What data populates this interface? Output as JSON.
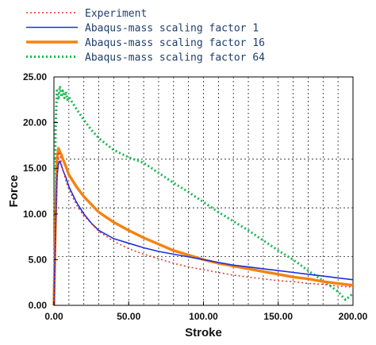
{
  "chart_data": {
    "type": "line",
    "title": "",
    "xlabel": "Stroke",
    "ylabel": "Force",
    "xlim": [
      0,
      200
    ],
    "ylim": [
      0,
      25
    ],
    "xticks": [
      0,
      50,
      100,
      150,
      200
    ],
    "yticks": [
      0,
      5,
      10,
      15,
      20,
      25
    ],
    "xtick_labels": [
      "0.00",
      "50.00",
      "100.00",
      "150.00",
      "200.00"
    ],
    "ytick_labels": [
      "0.00",
      "5.00",
      "10.00",
      "15.00",
      "20.00",
      "25.00"
    ],
    "grid": true,
    "legend_position": "top-left-outside",
    "series": [
      {
        "name": "Experiment",
        "color": "#e8322a",
        "style": "dotted",
        "x": [
          0,
          1,
          2,
          3,
          4,
          5,
          6,
          8,
          10,
          15,
          20,
          30,
          40,
          50,
          60,
          70,
          80,
          90,
          100,
          110,
          120,
          130,
          140,
          150,
          160,
          170,
          180,
          190,
          200
        ],
        "y": [
          0,
          7,
          14,
          16.8,
          16.5,
          15.5,
          14.8,
          13.6,
          12.7,
          11.0,
          9.8,
          8.1,
          7.0,
          6.2,
          5.6,
          5.1,
          4.6,
          4.2,
          3.9,
          3.6,
          3.3,
          3.1,
          2.9,
          2.7,
          2.6,
          2.4,
          2.3,
          2.1,
          2.0
        ]
      },
      {
        "name": "Abaqus-mass scaling factor 1",
        "color": "#1e2fe0",
        "style": "solid",
        "x": [
          0,
          1,
          2,
          3,
          4,
          5,
          6,
          8,
          10,
          15,
          20,
          25,
          30,
          40,
          50,
          60,
          70,
          80,
          90,
          100,
          110,
          120,
          130,
          140,
          150,
          160,
          170,
          180,
          190,
          200
        ],
        "y": [
          0,
          8,
          14,
          15.5,
          15.8,
          15.3,
          14.8,
          14.0,
          13.0,
          11.3,
          10.0,
          9.0,
          8.2,
          7.3,
          6.8,
          6.3,
          5.9,
          5.6,
          5.3,
          5.0,
          4.7,
          4.4,
          4.2,
          4.0,
          3.8,
          3.6,
          3.4,
          3.2,
          3.0,
          2.8
        ]
      },
      {
        "name": "Abaqus-mass scaling factor 16",
        "color": "#f5820f",
        "style": "solid-thick",
        "x": [
          0,
          1,
          2,
          3,
          4,
          5,
          6,
          8,
          10,
          15,
          20,
          30,
          40,
          50,
          60,
          70,
          80,
          90,
          100,
          110,
          120,
          130,
          140,
          150,
          160,
          170,
          180,
          190,
          200
        ],
        "y": [
          0,
          9,
          16,
          17.2,
          16.8,
          16.5,
          16.0,
          15.2,
          14.3,
          13.0,
          11.9,
          10.2,
          9.1,
          8.2,
          7.4,
          6.7,
          6.0,
          5.5,
          5.0,
          4.6,
          4.3,
          4.0,
          3.7,
          3.4,
          3.1,
          2.9,
          2.6,
          2.4,
          2.2
        ]
      },
      {
        "name": "Abaqus-mass scaling factor 64",
        "color": "#16b84e",
        "style": "dotted-thick",
        "x": [
          0,
          0.5,
          1,
          2,
          3,
          4,
          5,
          6,
          7,
          8,
          9,
          10,
          15,
          20,
          25,
          30,
          40,
          50,
          60,
          70,
          80,
          90,
          100,
          110,
          120,
          130,
          140,
          150,
          160,
          170,
          180,
          190,
          195,
          200
        ],
        "y": [
          0,
          10,
          19,
          23.5,
          22.5,
          24,
          22.8,
          23.5,
          22.7,
          23.4,
          22.5,
          22.8,
          21.5,
          20.3,
          19.2,
          18.3,
          17.0,
          16.2,
          15.6,
          14.5,
          13.4,
          12.4,
          11.3,
          10.2,
          9.2,
          8.2,
          7.1,
          6.0,
          5.0,
          3.8,
          2.7,
          1.5,
          0.6,
          1.3
        ]
      }
    ]
  }
}
